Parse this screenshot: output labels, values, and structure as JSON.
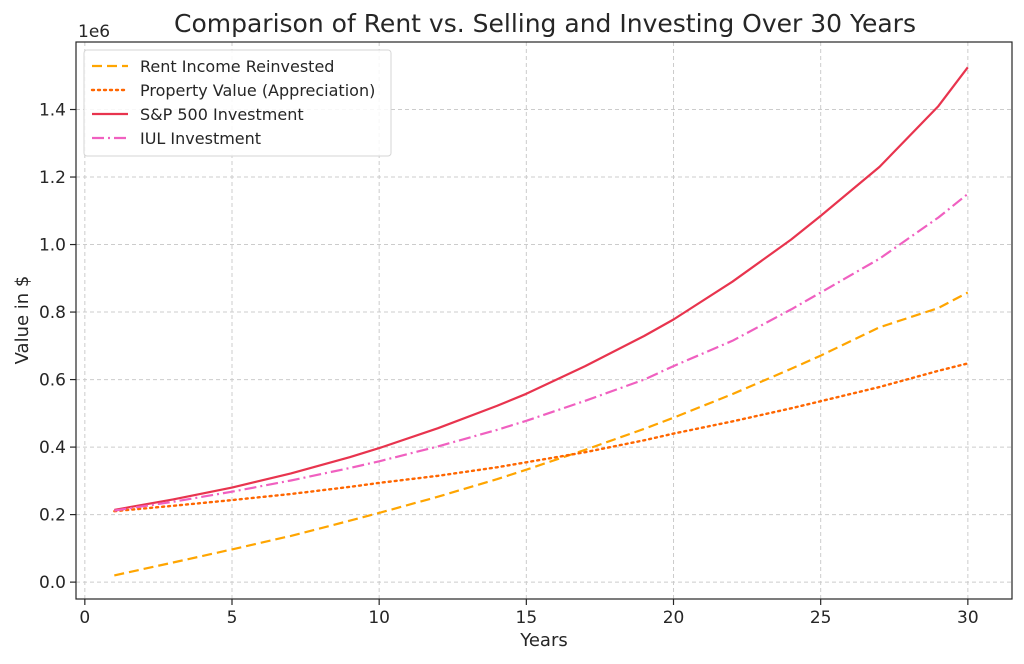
{
  "chart_data": {
    "type": "line",
    "title": "Comparison of Rent vs. Selling and Investing Over 30 Years",
    "xlabel": "Years",
    "ylabel": "Value in $",
    "y_offset_label": "1e6",
    "xlim": [
      -0.3,
      31.5
    ],
    "ylim": [
      -0.05,
      1.6
    ],
    "x_ticks": [
      0,
      5,
      10,
      15,
      20,
      25,
      30
    ],
    "x_tick_labels": [
      "0",
      "5",
      "10",
      "15",
      "20",
      "25",
      "30"
    ],
    "y_ticks": [
      0.0,
      0.2,
      0.4,
      0.6,
      0.8,
      1.0,
      1.2,
      1.4
    ],
    "y_tick_labels": [
      "0.0",
      "0.2",
      "0.4",
      "0.6",
      "0.8",
      "1.0",
      "1.2",
      "1.4"
    ],
    "grid": true,
    "legend_position": "top-left",
    "x": [
      1,
      3,
      5,
      7,
      9,
      10,
      12,
      14,
      15,
      17,
      19,
      20,
      22,
      24,
      25,
      27,
      29,
      30
    ],
    "series": [
      {
        "name": "Rent Income Reinvested",
        "color": "#FFA500",
        "style": "dashed",
        "values": [
          0.02,
          0.058,
          0.097,
          0.137,
          0.182,
          0.205,
          0.253,
          0.305,
          0.333,
          0.392,
          0.454,
          0.487,
          0.557,
          0.632,
          0.671,
          0.755,
          0.812,
          0.858
        ]
      },
      {
        "name": "Property Value (Appreciation)",
        "color": "#FF6600",
        "style": "dotted",
        "values": [
          0.21,
          0.226,
          0.243,
          0.261,
          0.282,
          0.294,
          0.315,
          0.34,
          0.355,
          0.385,
          0.42,
          0.44,
          0.476,
          0.515,
          0.536,
          0.578,
          0.626,
          0.648
        ]
      },
      {
        "name": "S&P 500 Investment",
        "color": "#E8344E",
        "style": "solid",
        "values": [
          0.214,
          0.245,
          0.28,
          0.322,
          0.37,
          0.397,
          0.456,
          0.522,
          0.558,
          0.64,
          0.729,
          0.778,
          0.89,
          1.015,
          1.085,
          1.23,
          1.41,
          1.525
        ]
      },
      {
        "name": "IUL Investment",
        "color": "#F060C0",
        "style": "dashdot",
        "values": [
          0.212,
          0.238,
          0.268,
          0.301,
          0.338,
          0.358,
          0.402,
          0.451,
          0.478,
          0.537,
          0.6,
          0.64,
          0.715,
          0.808,
          0.858,
          0.958,
          1.08,
          1.15
        ]
      }
    ]
  }
}
